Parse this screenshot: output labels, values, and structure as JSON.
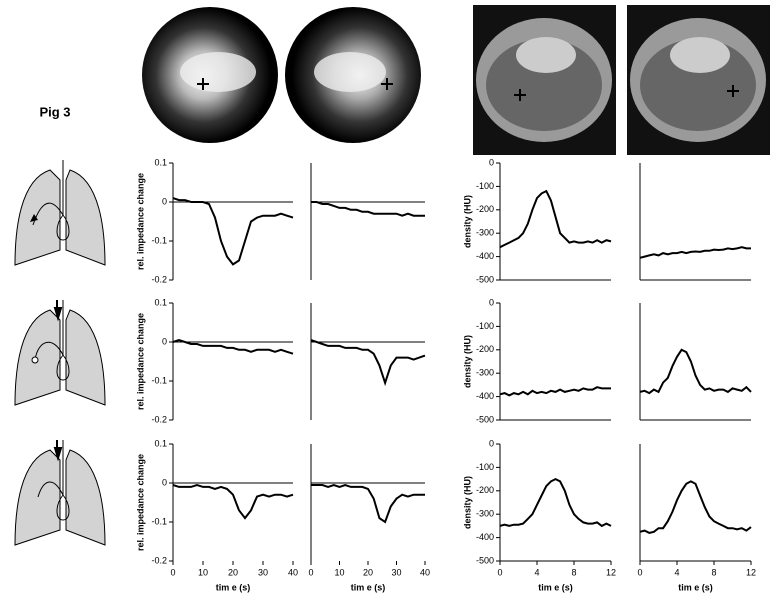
{
  "label": "Pig 3",
  "chart_data": [
    {
      "type": "line",
      "ylabel": "rel. impedance change",
      "xlim": [
        0,
        40
      ],
      "ylim": [
        -0.2,
        0.1
      ],
      "yticks": [
        -0.2,
        -0.1,
        0,
        0.1
      ],
      "x": [
        0,
        2,
        4,
        6,
        8,
        10,
        12,
        14,
        16,
        18,
        20,
        22,
        24,
        26,
        28,
        30,
        32,
        34,
        36,
        38,
        40
      ],
      "values": [
        0.01,
        0.005,
        0.005,
        0,
        0,
        0,
        -0.005,
        -0.04,
        -0.1,
        -0.14,
        -0.16,
        -0.15,
        -0.1,
        -0.05,
        -0.04,
        -0.035,
        -0.035,
        -0.035,
        -0.03,
        -0.035,
        -0.04
      ]
    },
    {
      "type": "line",
      "xlim": [
        0,
        40
      ],
      "ylim": [
        -0.2,
        0.1
      ],
      "x": [
        0,
        2,
        4,
        6,
        8,
        10,
        12,
        14,
        16,
        18,
        20,
        22,
        24,
        26,
        28,
        30,
        32,
        34,
        36,
        38,
        40
      ],
      "values": [
        0,
        0,
        -0.005,
        -0.005,
        -0.01,
        -0.015,
        -0.015,
        -0.02,
        -0.02,
        -0.025,
        -0.025,
        -0.03,
        -0.03,
        -0.03,
        -0.03,
        -0.03,
        -0.035,
        -0.03,
        -0.035,
        -0.035,
        -0.035
      ]
    },
    {
      "type": "line",
      "ylabel": "density (HU)",
      "xlim": [
        0,
        12
      ],
      "ylim": [
        -500,
        0
      ],
      "yticks": [
        -500,
        -400,
        -300,
        -200,
        -100,
        0
      ],
      "x": [
        0,
        0.5,
        1,
        1.5,
        2,
        2.5,
        3,
        3.5,
        4,
        4.5,
        5,
        5.5,
        6,
        6.5,
        7,
        7.5,
        8,
        8.5,
        9,
        9.5,
        10,
        10.5,
        11,
        11.5,
        12
      ],
      "values": [
        -360,
        -350,
        -340,
        -330,
        -320,
        -300,
        -260,
        -200,
        -150,
        -130,
        -120,
        -160,
        -230,
        -300,
        -320,
        -340,
        -335,
        -340,
        -340,
        -335,
        -340,
        -330,
        -340,
        -330,
        -335
      ]
    },
    {
      "type": "line",
      "xlim": [
        0,
        12
      ],
      "ylim": [
        -500,
        0
      ],
      "x": [
        0,
        0.5,
        1,
        1.5,
        2,
        2.5,
        3,
        3.5,
        4,
        4.5,
        5,
        5.5,
        6,
        6.5,
        7,
        7.5,
        8,
        8.5,
        9,
        9.5,
        10,
        10.5,
        11,
        11.5,
        12
      ],
      "values": [
        -405,
        -400,
        -395,
        -390,
        -395,
        -385,
        -390,
        -385,
        -385,
        -380,
        -385,
        -380,
        -378,
        -380,
        -375,
        -375,
        -370,
        -372,
        -370,
        -365,
        -368,
        -365,
        -360,
        -365,
        -365
      ]
    },
    {
      "type": "line",
      "ylabel": "rel. impedance change",
      "xlim": [
        0,
        40
      ],
      "ylim": [
        -0.2,
        0.1
      ],
      "yticks": [
        -0.2,
        -0.1,
        0,
        0.1
      ],
      "x": [
        0,
        2,
        4,
        6,
        8,
        10,
        12,
        14,
        16,
        18,
        20,
        22,
        24,
        26,
        28,
        30,
        32,
        34,
        36,
        38,
        40
      ],
      "values": [
        0,
        0.005,
        0,
        -0.005,
        -0.005,
        -0.01,
        -0.01,
        -0.01,
        -0.01,
        -0.015,
        -0.015,
        -0.02,
        -0.02,
        -0.025,
        -0.02,
        -0.02,
        -0.02,
        -0.025,
        -0.02,
        -0.025,
        -0.03
      ]
    },
    {
      "type": "line",
      "xlim": [
        0,
        40
      ],
      "ylim": [
        -0.2,
        0.1
      ],
      "x": [
        0,
        2,
        4,
        6,
        8,
        10,
        12,
        14,
        16,
        18,
        20,
        22,
        24,
        26,
        28,
        30,
        32,
        34,
        36,
        38,
        40
      ],
      "values": [
        0.005,
        0,
        -0.005,
        -0.01,
        -0.01,
        -0.01,
        -0.015,
        -0.015,
        -0.015,
        -0.02,
        -0.02,
        -0.03,
        -0.06,
        -0.105,
        -0.06,
        -0.04,
        -0.04,
        -0.04,
        -0.045,
        -0.04,
        -0.035
      ]
    },
    {
      "type": "line",
      "ylabel": "density (HU)",
      "xlim": [
        0,
        12
      ],
      "ylim": [
        -500,
        0
      ],
      "yticks": [
        -500,
        -400,
        -300,
        -200,
        -100,
        0
      ],
      "x": [
        0,
        0.5,
        1,
        1.5,
        2,
        2.5,
        3,
        3.5,
        4,
        4.5,
        5,
        5.5,
        6,
        6.5,
        7,
        7.5,
        8,
        8.5,
        9,
        9.5,
        10,
        10.5,
        11,
        11.5,
        12
      ],
      "values": [
        -390,
        -385,
        -395,
        -385,
        -390,
        -380,
        -390,
        -375,
        -385,
        -380,
        -385,
        -375,
        -380,
        -370,
        -380,
        -375,
        -370,
        -375,
        -365,
        -370,
        -370,
        -360,
        -365,
        -365,
        -365
      ]
    },
    {
      "type": "line",
      "xlim": [
        0,
        12
      ],
      "ylim": [
        -500,
        0
      ],
      "x": [
        0,
        0.5,
        1,
        1.5,
        2,
        2.5,
        3,
        3.5,
        4,
        4.5,
        5,
        5.5,
        6,
        6.5,
        7,
        7.5,
        8,
        8.5,
        9,
        9.5,
        10,
        10.5,
        11,
        11.5,
        12
      ],
      "values": [
        -380,
        -375,
        -385,
        -370,
        -380,
        -340,
        -320,
        -270,
        -230,
        -200,
        -210,
        -250,
        -310,
        -350,
        -370,
        -365,
        -375,
        -370,
        -370,
        -380,
        -365,
        -370,
        -375,
        -360,
        -380
      ]
    },
    {
      "type": "line",
      "ylabel": "rel. impedance change",
      "xlabel": "tim e (s)",
      "xlim": [
        0,
        40
      ],
      "ylim": [
        -0.2,
        0.1
      ],
      "yticks": [
        -0.2,
        -0.1,
        0,
        0.1
      ],
      "xticks": [
        0,
        10,
        20,
        30,
        40
      ],
      "x": [
        0,
        2,
        4,
        6,
        8,
        10,
        12,
        14,
        16,
        18,
        20,
        22,
        24,
        26,
        28,
        30,
        32,
        34,
        36,
        38,
        40
      ],
      "values": [
        -0.005,
        -0.01,
        -0.01,
        -0.01,
        -0.005,
        -0.01,
        -0.01,
        -0.015,
        -0.01,
        -0.015,
        -0.03,
        -0.07,
        -0.09,
        -0.07,
        -0.035,
        -0.03,
        -0.035,
        -0.03,
        -0.03,
        -0.035,
        -0.03
      ]
    },
    {
      "type": "line",
      "xlabel": "tim e (s)",
      "xlim": [
        0,
        40
      ],
      "ylim": [
        -0.2,
        0.1
      ],
      "xticks": [
        0,
        10,
        20,
        30,
        40
      ],
      "x": [
        0,
        2,
        4,
        6,
        8,
        10,
        12,
        14,
        16,
        18,
        20,
        22,
        24,
        26,
        28,
        30,
        32,
        34,
        36,
        38,
        40
      ],
      "values": [
        -0.005,
        -0.005,
        -0.005,
        -0.01,
        -0.005,
        -0.01,
        -0.005,
        -0.01,
        -0.01,
        -0.01,
        -0.015,
        -0.04,
        -0.09,
        -0.1,
        -0.06,
        -0.04,
        -0.03,
        -0.035,
        -0.03,
        -0.03,
        -0.03
      ]
    },
    {
      "type": "line",
      "ylabel": "density (HU)",
      "xlabel": "tim e (s)",
      "xlim": [
        0,
        12
      ],
      "ylim": [
        -500,
        0
      ],
      "yticks": [
        -500,
        -400,
        -300,
        -200,
        -100,
        0
      ],
      "xticks": [
        0,
        4,
        8,
        12
      ],
      "x": [
        0,
        0.5,
        1,
        1.5,
        2,
        2.5,
        3,
        3.5,
        4,
        4.5,
        5,
        5.5,
        6,
        6.5,
        7,
        7.5,
        8,
        8.5,
        9,
        9.5,
        10,
        10.5,
        11,
        11.5,
        12
      ],
      "values": [
        -350,
        -345,
        -350,
        -345,
        -345,
        -340,
        -320,
        -300,
        -260,
        -220,
        -180,
        -160,
        -150,
        -160,
        -200,
        -260,
        -300,
        -320,
        -335,
        -340,
        -340,
        -335,
        -350,
        -340,
        -350
      ]
    },
    {
      "type": "line",
      "xlabel": "tim e (s)",
      "xlim": [
        0,
        12
      ],
      "ylim": [
        -500,
        0
      ],
      "xticks": [
        0,
        4,
        8,
        12
      ],
      "x": [
        0,
        0.5,
        1,
        1.5,
        2,
        2.5,
        3,
        3.5,
        4,
        4.5,
        5,
        5.5,
        6,
        6.5,
        7,
        7.5,
        8,
        8.5,
        9,
        9.5,
        10,
        10.5,
        11,
        11.5,
        12
      ],
      "values": [
        -375,
        -370,
        -380,
        -375,
        -360,
        -360,
        -330,
        -290,
        -240,
        -200,
        -170,
        -160,
        -170,
        -220,
        -270,
        -310,
        -330,
        -340,
        -350,
        -360,
        -360,
        -365,
        -360,
        -370,
        -355
      ]
    }
  ]
}
